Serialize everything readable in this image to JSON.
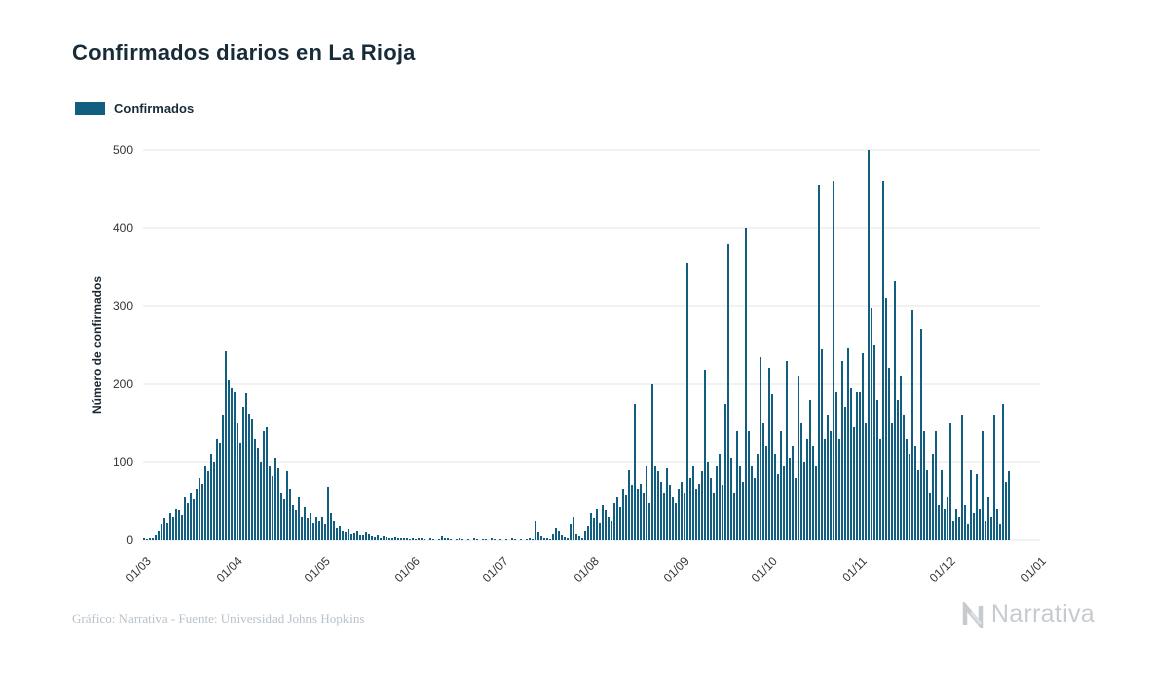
{
  "title": "Confirmados diarios en La Rioja",
  "legend": {
    "label": "Confirmados",
    "color": "#125e80"
  },
  "footer": {
    "credit": "Gráfico: Narrativa - Fuente: Universidad Johns Hopkins",
    "brand": "Narrativa"
  },
  "colors": {
    "bar": "#125e80",
    "title_text": "#182b38",
    "axis_text": "#333333",
    "grid": "#e6e6e6",
    "muted_text": "#b9c2c9",
    "brand_text": "#c6cbd0"
  },
  "chart_data": {
    "type": "bar",
    "title": "Confirmados diarios en La Rioja",
    "xlabel": "",
    "ylabel": "Número de confirmados",
    "ylim": [
      0,
      500
    ],
    "yticks": [
      0,
      100,
      200,
      300,
      400,
      500
    ],
    "grid": true,
    "legend_position": "top-left",
    "bar_color": "#125e80",
    "x_unit": "day",
    "xticks": [
      {
        "index": 0,
        "label": "01/03"
      },
      {
        "index": 31,
        "label": "01/04"
      },
      {
        "index": 61,
        "label": "01/05"
      },
      {
        "index": 92,
        "label": "01/06"
      },
      {
        "index": 122,
        "label": "01/07"
      },
      {
        "index": 153,
        "label": "01/08"
      },
      {
        "index": 184,
        "label": "01/09"
      },
      {
        "index": 214,
        "label": "01/10"
      },
      {
        "index": 245,
        "label": "01/11"
      },
      {
        "index": 275,
        "label": "01/12"
      },
      {
        "index": 306,
        "label": "01/01"
      }
    ],
    "series": [
      {
        "name": "Confirmados",
        "values": [
          2,
          1,
          3,
          2,
          6,
          12,
          20,
          28,
          22,
          35,
          30,
          40,
          38,
          32,
          55,
          48,
          60,
          52,
          65,
          80,
          72,
          95,
          88,
          110,
          100,
          130,
          125,
          160,
          242,
          205,
          195,
          190,
          150,
          125,
          170,
          188,
          162,
          155,
          130,
          118,
          100,
          140,
          145,
          95,
          82,
          105,
          92,
          60,
          52,
          88,
          65,
          45,
          38,
          55,
          30,
          42,
          28,
          35,
          22,
          30,
          25,
          30,
          20,
          68,
          35,
          25,
          15,
          18,
          12,
          10,
          14,
          8,
          9,
          11,
          7,
          6,
          10,
          8,
          5,
          4,
          6,
          3,
          5,
          4,
          3,
          2,
          4,
          3,
          2,
          3,
          2,
          1,
          2,
          1,
          3,
          2,
          1,
          0,
          2,
          1,
          0,
          1,
          5,
          3,
          2,
          1,
          0,
          1,
          2,
          1,
          0,
          1,
          0,
          2,
          1,
          0,
          1,
          1,
          0,
          2,
          1,
          0,
          1,
          0,
          1,
          0,
          2,
          1,
          0,
          1,
          0,
          1,
          2,
          1,
          25,
          10,
          5,
          3,
          2,
          1,
          8,
          15,
          12,
          6,
          4,
          2,
          20,
          30,
          8,
          5,
          3,
          12,
          18,
          35,
          28,
          40,
          22,
          45,
          38,
          30,
          25,
          48,
          55,
          42,
          65,
          58,
          90,
          70,
          175,
          65,
          72,
          60,
          95,
          48,
          200,
          95,
          88,
          75,
          60,
          92,
          70,
          55,
          48,
          65,
          75,
          60,
          355,
          80,
          95,
          65,
          72,
          88,
          218,
          100,
          80,
          60,
          95,
          110,
          70,
          175,
          380,
          105,
          60,
          140,
          95,
          75,
          400,
          140,
          95,
          80,
          110,
          235,
          150,
          120,
          220,
          187,
          110,
          85,
          140,
          95,
          230,
          105,
          120,
          80,
          210,
          150,
          100,
          130,
          180,
          120,
          95,
          455,
          245,
          130,
          160,
          140,
          460,
          190,
          130,
          230,
          170,
          246,
          195,
          145,
          190,
          190,
          240,
          150,
          500,
          297,
          250,
          180,
          130,
          460,
          310,
          220,
          150,
          332,
          180,
          210,
          160,
          130,
          110,
          295,
          120,
          90,
          271,
          140,
          90,
          60,
          110,
          140,
          45,
          90,
          40,
          55,
          150,
          25,
          40,
          30,
          160,
          45,
          20,
          90,
          35,
          85,
          40,
          140,
          25,
          55,
          30,
          160,
          40,
          20,
          175,
          75,
          88,
          0,
          0,
          0,
          0,
          0,
          0,
          0,
          0,
          0,
          0
        ]
      }
    ]
  }
}
